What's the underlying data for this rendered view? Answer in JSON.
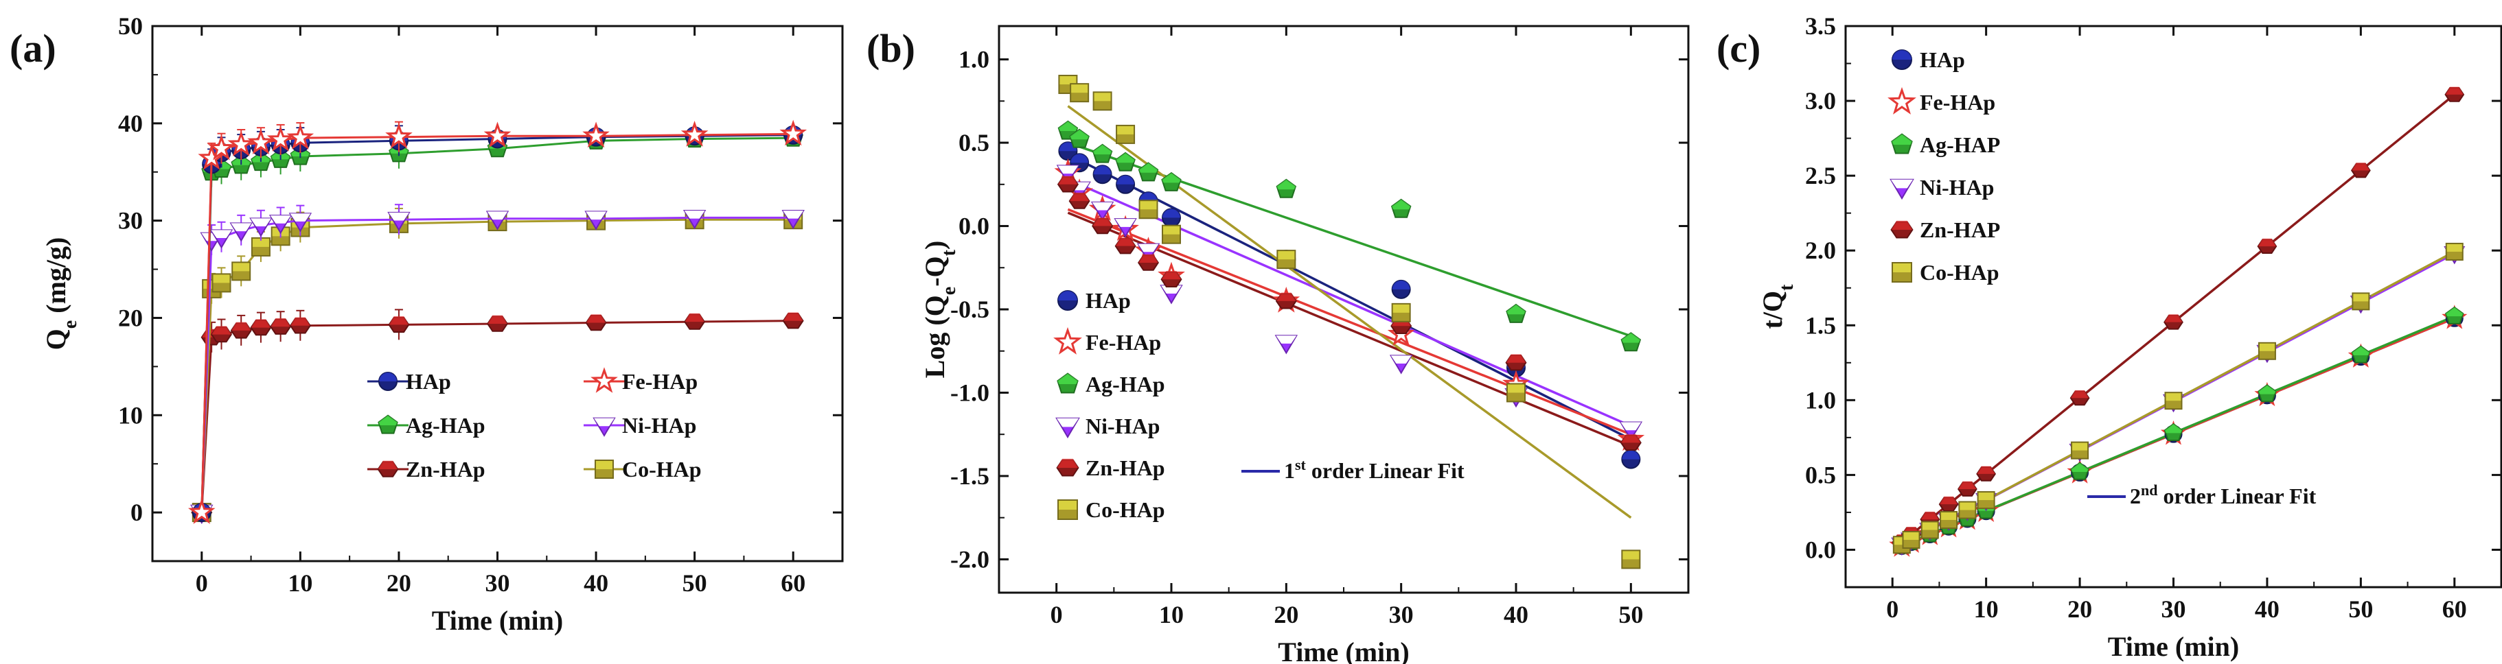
{
  "colors": {
    "HAp": "#1a237e",
    "Fe-HAp": "#e53935",
    "Ag-HAp": "#2e9e2e",
    "Ni-HAp": "#9933ff",
    "Zn-HAp": "#8b1a1a",
    "Co-HAp": "#a89a2a",
    "fit_line": "#2a2aa8"
  },
  "chart_data": [
    {
      "type": "line",
      "panel_label": "(a)",
      "xlabel": "Time (min)",
      "ylabel_main": "Q",
      "ylabel_sub": "e",
      "ylabel_suffix": " (mg/g)",
      "xlim": [
        -5,
        65
      ],
      "ylim": [
        -5,
        50
      ],
      "xticks": [
        0,
        10,
        20,
        30,
        40,
        50,
        60
      ],
      "yticks": [
        0,
        10,
        20,
        30,
        40,
        50
      ],
      "legend": [
        "HAp",
        "Fe-HAp",
        "Ag-HAp",
        "Ni-HAp",
        "Zn-HAp",
        "Co-HAp"
      ],
      "x": [
        0,
        1,
        2,
        4,
        6,
        8,
        10,
        20,
        30,
        40,
        50,
        60
      ],
      "series": [
        {
          "name": "HAp",
          "marker": "circle",
          "values": [
            0,
            35.8,
            37.0,
            37.3,
            37.6,
            37.8,
            38.0,
            38.2,
            38.4,
            38.6,
            38.7,
            38.8
          ]
        },
        {
          "name": "Fe-HAp",
          "marker": "star",
          "values": [
            0,
            36.4,
            37.4,
            37.8,
            38.0,
            38.3,
            38.5,
            38.6,
            38.7,
            38.7,
            38.8,
            38.9
          ]
        },
        {
          "name": "Ag-HAp",
          "marker": "pentagon",
          "values": [
            0,
            35.0,
            35.3,
            35.7,
            36.0,
            36.3,
            36.6,
            36.9,
            37.4,
            38.2,
            38.4,
            38.5
          ]
        },
        {
          "name": "Ni-HAp",
          "marker": "triangle-down",
          "values": [
            0,
            28.0,
            28.3,
            29.0,
            29.5,
            29.8,
            30.0,
            30.1,
            30.2,
            30.2,
            30.3,
            30.3
          ]
        },
        {
          "name": "Zn-HAp",
          "marker": "hexagon",
          "values": [
            0,
            18.0,
            18.3,
            18.7,
            19.0,
            19.1,
            19.2,
            19.3,
            19.4,
            19.5,
            19.6,
            19.7
          ]
        },
        {
          "name": "Co-HAp",
          "marker": "square",
          "values": [
            0,
            23.0,
            23.6,
            24.8,
            27.3,
            28.4,
            29.3,
            29.7,
            29.9,
            30.0,
            30.1,
            30.1
          ]
        }
      ]
    },
    {
      "type": "scatter",
      "panel_label": "(b)",
      "xlabel": "Time (min)",
      "ylabel_prefix": "Log (Q",
      "ylabel_sub1": "e",
      "ylabel_mid": "-Q",
      "ylabel_sub2": "t",
      "ylabel_suffix": ")",
      "xlim": [
        -5,
        55
      ],
      "ylim": [
        -2.2,
        1.2
      ],
      "xticks": [
        0,
        10,
        20,
        30,
        40,
        50
      ],
      "yticks": [
        -2.0,
        -1.5,
        -1.0,
        -0.5,
        0.0,
        0.5,
        1.0
      ],
      "legend": [
        "HAp",
        "Fe-HAp",
        "Ag-HAp",
        "Ni-HAp",
        "Zn-HAp",
        "Co-HAp"
      ],
      "fit_label_main": "1",
      "fit_label_sup": "st",
      "fit_label_rest": " order Linear Fit",
      "x": [
        1,
        2,
        4,
        6,
        8,
        10,
        20,
        30,
        40,
        50
      ],
      "series": [
        {
          "name": "HAp",
          "marker": "circle",
          "values": [
            0.45,
            0.38,
            0.31,
            0.25,
            0.15,
            0.05,
            -0.2,
            -0.38,
            -0.85,
            -1.4
          ],
          "fit": [
            0.43,
            -1.28
          ]
        },
        {
          "name": "Fe-HAp",
          "marker": "star",
          "values": [
            0.32,
            0.2,
            0.1,
            -0.02,
            -0.15,
            -0.3,
            -0.45,
            -0.65,
            -0.95,
            -1.28
          ],
          "fit": [
            0.1,
            -1.25
          ]
        },
        {
          "name": "Ag-HAp",
          "marker": "pentagon",
          "values": [
            0.57,
            0.52,
            0.43,
            0.38,
            0.32,
            0.26,
            0.22,
            0.1,
            -0.53,
            -0.7
          ],
          "fit": [
            0.5,
            -0.66
          ]
        },
        {
          "name": "Ni-HAp",
          "marker": "triangle-down",
          "values": [
            0.32,
            0.22,
            0.1,
            0.0,
            -0.15,
            -0.4,
            -0.7,
            -0.82,
            -1.02,
            -1.22
          ],
          "fit": [
            0.28,
            -1.2
          ]
        },
        {
          "name": "Zn-HAp",
          "marker": "hexagon",
          "values": [
            0.25,
            0.15,
            0.0,
            -0.12,
            -0.22,
            -0.32,
            -0.45,
            -0.6,
            -0.82,
            -1.3
          ],
          "fit": [
            0.08,
            -1.32
          ]
        },
        {
          "name": "Co-HAp",
          "marker": "square",
          "values": [
            0.85,
            0.8,
            0.75,
            0.55,
            0.1,
            -0.05,
            -0.2,
            -0.52,
            -1.0,
            -2.0
          ],
          "fit": [
            0.72,
            -1.75
          ]
        }
      ]
    },
    {
      "type": "scatter",
      "panel_label": "(c)",
      "xlabel": "Time (min)",
      "ylabel_main": "t/Q",
      "ylabel_sub": "t",
      "xlim": [
        -5,
        65
      ],
      "ylim": [
        -0.25,
        3.5
      ],
      "xticks": [
        0,
        10,
        20,
        30,
        40,
        50,
        60
      ],
      "yticks": [
        0.0,
        0.5,
        1.0,
        1.5,
        2.0,
        2.5,
        3.0,
        3.5
      ],
      "legend": [
        "HAp",
        "Fe-HAp",
        "Ag-HAP",
        "Ni-HAp",
        "Zn-HAP",
        "Co-HAp"
      ],
      "fit_label_main": "2",
      "fit_label_sup": "nd",
      "fit_label_rest": " order Linear Fit",
      "x": [
        1,
        2,
        4,
        6,
        8,
        10,
        20,
        30,
        40,
        50,
        60
      ],
      "series": [
        {
          "name": "HAp",
          "marker": "circle",
          "slope": 0.0258
        },
        {
          "name": "Fe-HAp",
          "marker": "star",
          "slope": 0.0258
        },
        {
          "name": "Ag-HAP",
          "marker": "pentagon",
          "slope": 0.026
        },
        {
          "name": "Ni-HAp",
          "marker": "triangle-down",
          "slope": 0.033
        },
        {
          "name": "Zn-HAP",
          "marker": "hexagon",
          "slope": 0.0507
        },
        {
          "name": "Co-HAp",
          "marker": "square",
          "slope": 0.0332
        }
      ]
    }
  ]
}
